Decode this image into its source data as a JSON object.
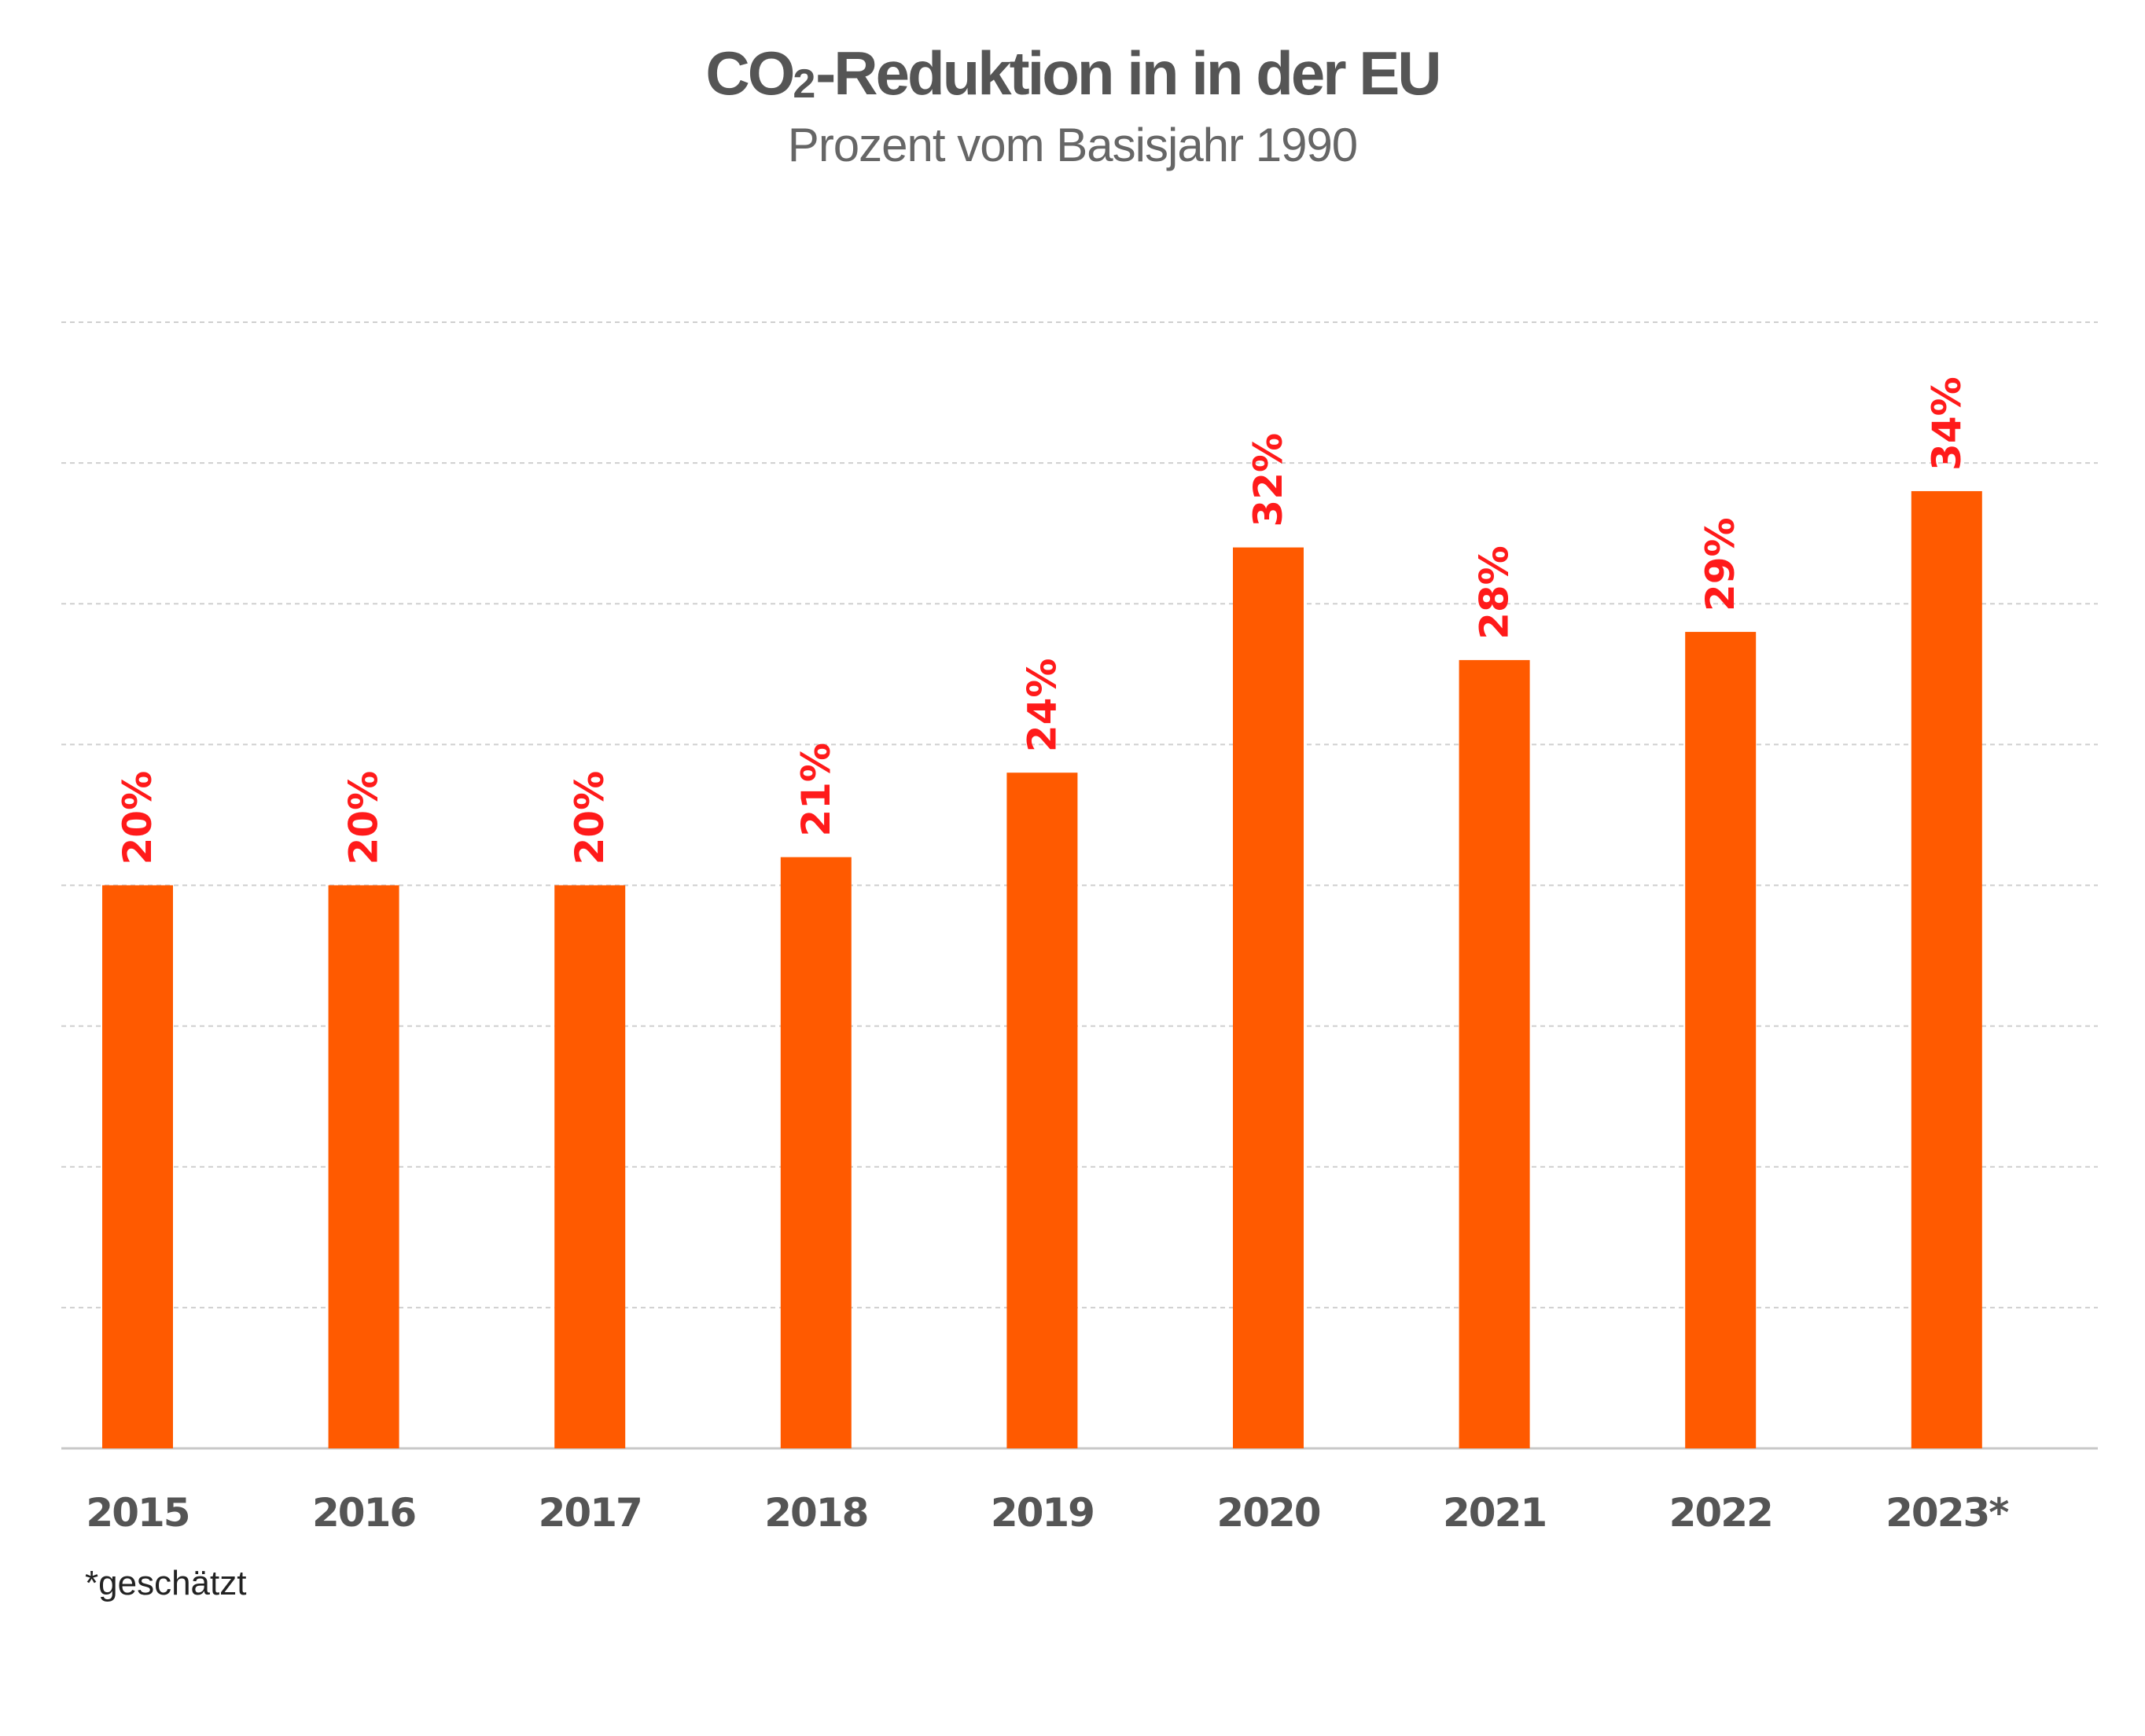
{
  "chart_data": {
    "type": "bar",
    "title": {
      "prefix": "CO",
      "subscript": "2",
      "suffix": "-Reduktion in in der EU"
    },
    "subtitle": "Prozent vom Basisjahr 1990",
    "categories": [
      "2015",
      "2016",
      "2017",
      "2018",
      "2019",
      "2020",
      "2021",
      "2022",
      "2023*"
    ],
    "values": [
      20,
      20,
      20,
      21,
      24,
      32,
      28,
      29,
      34
    ],
    "value_labels": [
      "20%",
      "20%",
      "20%",
      "21%",
      "24%",
      "32%",
      "28%",
      "29%",
      "34%"
    ],
    "ylim": [
      0,
      40
    ],
    "ytick_step": 5,
    "grid": true,
    "bar_color": "#ff5a00",
    "label_color": "#ff1a1a",
    "tick_color": "#555555",
    "footnote": "*geschätzt"
  }
}
